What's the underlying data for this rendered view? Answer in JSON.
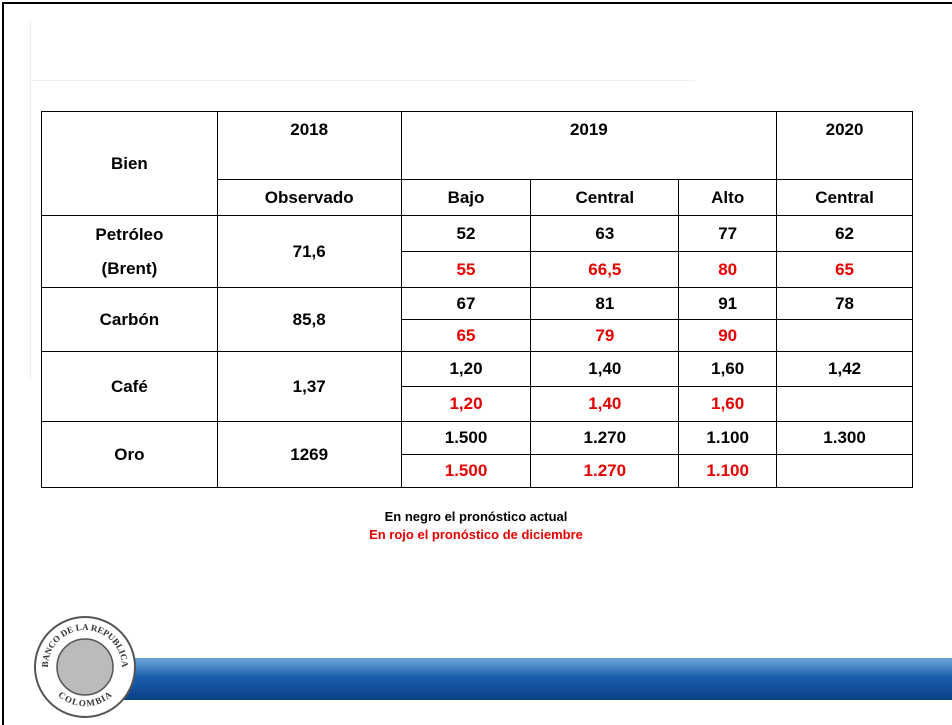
{
  "table": {
    "headers": {
      "item": "Bien",
      "y2018": "2018",
      "y2019": "2019",
      "y2020": "2020",
      "observed": "Observado",
      "low": "Bajo",
      "central": "Central",
      "high": "Alto",
      "central2020": "Central"
    },
    "rows": [
      {
        "label": [
          "Petróleo",
          "(Brent)"
        ],
        "observed": "71,6",
        "current": [
          "52",
          "63",
          "77",
          "62"
        ],
        "december": [
          "55",
          "66,5",
          "80",
          "65"
        ]
      },
      {
        "label": [
          "Carbón"
        ],
        "observed": "85,8",
        "current": [
          "67",
          "81",
          "91",
          "78"
        ],
        "december": [
          "65",
          "79",
          "90"
        ]
      },
      {
        "label": [
          "Café"
        ],
        "observed": "1,37",
        "current": [
          "1,20",
          "1,40",
          "1,60",
          "1,42"
        ],
        "december": [
          "1,20",
          "1,40",
          "1,60"
        ]
      },
      {
        "label": [
          "Oro"
        ],
        "observed": "1269",
        "current": [
          "1.500",
          "1.270",
          "1.100",
          "1.300"
        ],
        "december": [
          "1.500",
          "1.270",
          "1.100"
        ]
      }
    ]
  },
  "notes": {
    "black": "En negro el pronóstico actual",
    "red": "En rojo el pronóstico de diciembre"
  },
  "logo": {
    "top": "BANCO DE LA REPUBLICA",
    "bottom": "COLOMBIA"
  }
}
